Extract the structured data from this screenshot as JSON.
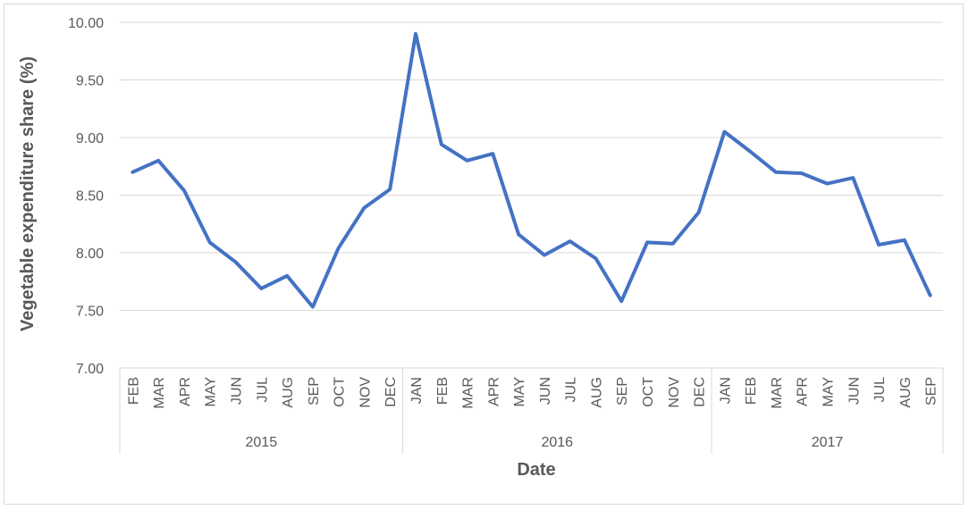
{
  "chart_data": {
    "type": "line",
    "title": "",
    "xlabel": "Date",
    "ylabel": "Vegetable expenditure share (%)",
    "ylim": [
      7.0,
      10.0
    ],
    "ytick_labels": [
      "7.00",
      "7.50",
      "8.00",
      "8.50",
      "9.00",
      "9.50",
      "10.00"
    ],
    "yticks": [
      7.0,
      7.5,
      8.0,
      8.5,
      9.0,
      9.5,
      10.0
    ],
    "grid": true,
    "legend": "none",
    "line_color": "#4472C4",
    "categories": [
      "FEB",
      "MAR",
      "APR",
      "MAY",
      "JUN",
      "JUL",
      "AUG",
      "SEP",
      "OCT",
      "NOV",
      "DEC",
      "JAN",
      "FEB",
      "MAR",
      "APR",
      "MAY",
      "JUN",
      "JUL",
      "AUG",
      "SEP",
      "OCT",
      "NOV",
      "DEC",
      "JAN",
      "FEB",
      "MAR",
      "APR",
      "MAY",
      "JUN",
      "JUL",
      "AUG",
      "SEP"
    ],
    "groups": [
      {
        "label": "2015",
        "count": 11
      },
      {
        "label": "2016",
        "count": 12
      },
      {
        "label": "2017",
        "count": 9
      }
    ],
    "series": [
      {
        "values": [
          8.7,
          8.8,
          8.54,
          8.09,
          7.92,
          7.69,
          7.8,
          7.53,
          8.04,
          8.39,
          8.55,
          9.9,
          8.94,
          8.8,
          8.86,
          8.16,
          7.98,
          8.1,
          7.95,
          7.58,
          8.09,
          8.08,
          8.35,
          9.05,
          8.88,
          8.7,
          8.69,
          8.6,
          8.65,
          8.07,
          8.11,
          7.63
        ]
      }
    ]
  }
}
